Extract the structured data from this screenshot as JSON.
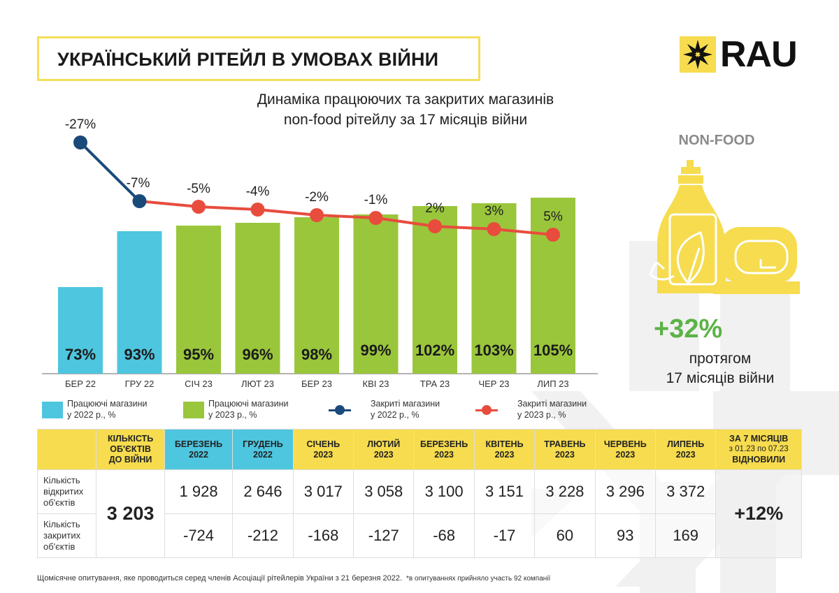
{
  "header": {
    "title": "УКРАЇНСЬКИЙ РІТЕЙЛ В УМОВАХ ВІЙНИ",
    "logo_text": "RAU",
    "logo_mark_icon": "eight-point-star-icon"
  },
  "side_panel": {
    "category": "NON-FOOD",
    "product_icon": "detergent-bottle-and-soap-icon",
    "highlight_value": "+32%",
    "highlight_desc_line1": "протягом",
    "highlight_desc_line2": "17 місяців війни"
  },
  "colors": {
    "bar_2022": "#4ec6df",
    "bar_2023": "#9ac63c",
    "line_2022": "#1a4a7a",
    "line_2023": "#e84c3d",
    "accent_yellow": "#f6dc4e",
    "highlight_green": "#5bb346"
  },
  "chart_data": {
    "type": "bar+line",
    "title": "Динаміка працюючих та закритих магазинів non-food рітейлу за 17 місяців війни",
    "title_line1": "Динаміка працюючих та закритих магазинів",
    "title_line2": "non-food рітейлу за 17 місяців війни",
    "categories": [
      "БЕР 22",
      "ГРУ 22",
      "СІЧ 23",
      "ЛЮТ 23",
      "БЕР 23",
      "КВІ 23",
      "ТРА 23",
      "ЧЕР 23",
      "ЛИП 23"
    ],
    "bars": {
      "values": [
        73,
        93,
        95,
        96,
        98,
        99,
        102,
        103,
        105
      ],
      "labels": [
        "73%",
        "93%",
        "95%",
        "96%",
        "98%",
        "99%",
        "102%",
        "103%",
        "105%"
      ],
      "year": [
        2022,
        2022,
        2023,
        2023,
        2023,
        2023,
        2023,
        2023,
        2023
      ]
    },
    "lines": {
      "values": [
        -27,
        -7,
        -5,
        -4,
        -2,
        -1,
        2,
        3,
        5
      ],
      "labels": [
        "-27%",
        "-7%",
        "-5%",
        "-4%",
        "-2%",
        "-1%",
        "2%",
        "3%",
        "5%"
      ],
      "series_2022_indices": [
        0,
        1
      ],
      "series_2023_indices": [
        1,
        2,
        3,
        4,
        5,
        6,
        7,
        8
      ]
    },
    "legend": [
      {
        "label_line1": "Працюючі магазини",
        "label_line2": "у 2022 р., %",
        "kind": "bar",
        "series": "2022"
      },
      {
        "label_line1": "Працюючі магазини",
        "label_line2": "у 2023 р., %",
        "kind": "bar",
        "series": "2023"
      },
      {
        "label_line1": "Закриті магазини",
        "label_line2": "у 2022 р., %",
        "kind": "line",
        "series": "2022"
      },
      {
        "label_line1": "Закриті магазини",
        "label_line2": "у 2023 р., %",
        "kind": "line",
        "series": "2023"
      }
    ],
    "legend_position": "bottom",
    "grid": false
  },
  "table": {
    "headers": [
      {
        "l1": "",
        "l2": "",
        "l3": ""
      },
      {
        "l1": "КІЛЬКІСТЬ",
        "l2": "ОБ'ЄКТІВ",
        "l3": "ДО ВІЙНИ"
      },
      {
        "l1": "БЕРЕЗЕНЬ",
        "l2": "2022",
        "l3": ""
      },
      {
        "l1": "ГРУДЕНЬ",
        "l2": "2022",
        "l3": ""
      },
      {
        "l1": "СІЧЕНЬ",
        "l2": "2023",
        "l3": ""
      },
      {
        "l1": "ЛЮТИЙ",
        "l2": "2023",
        "l3": ""
      },
      {
        "l1": "БЕРЕЗЕНЬ",
        "l2": "2023",
        "l3": ""
      },
      {
        "l1": "КВІТЕНЬ",
        "l2": "2023",
        "l3": ""
      },
      {
        "l1": "ТРАВЕНЬ",
        "l2": "2023",
        "l3": ""
      },
      {
        "l1": "ЧЕРВЕНЬ",
        "l2": "2023",
        "l3": ""
      },
      {
        "l1": "ЛИПЕНЬ",
        "l2": "2023",
        "l3": ""
      },
      {
        "l1": "ЗА 7 МІСЯЦІВ",
        "l2": "з 01.23 по 07.23",
        "l3": "ВІДНОВИЛИ"
      }
    ],
    "pre_war_total": "3 203",
    "recovered": "+12%",
    "rows": [
      {
        "label_l1": "Кількість",
        "label_l2": "відкритих",
        "label_l3": "об'єктів",
        "values": [
          "1 928",
          "2 646",
          "3 017",
          "3 058",
          "3 100",
          "3 151",
          "3 228",
          "3 296",
          "3 372"
        ]
      },
      {
        "label_l1": "Кількість",
        "label_l2": "закритих",
        "label_l3": "об'єктів",
        "values": [
          "-724",
          "-212",
          "-168",
          "-127",
          "-68",
          "-17",
          "60",
          "93",
          "169"
        ]
      }
    ]
  },
  "footnote": {
    "text": "Щомісячне опитування, яке проводиться серед членів Асоціації рітейлерів України з 21 березня 2022.",
    "note": "*в опитуваннях прийняло участь 92 компанії"
  }
}
